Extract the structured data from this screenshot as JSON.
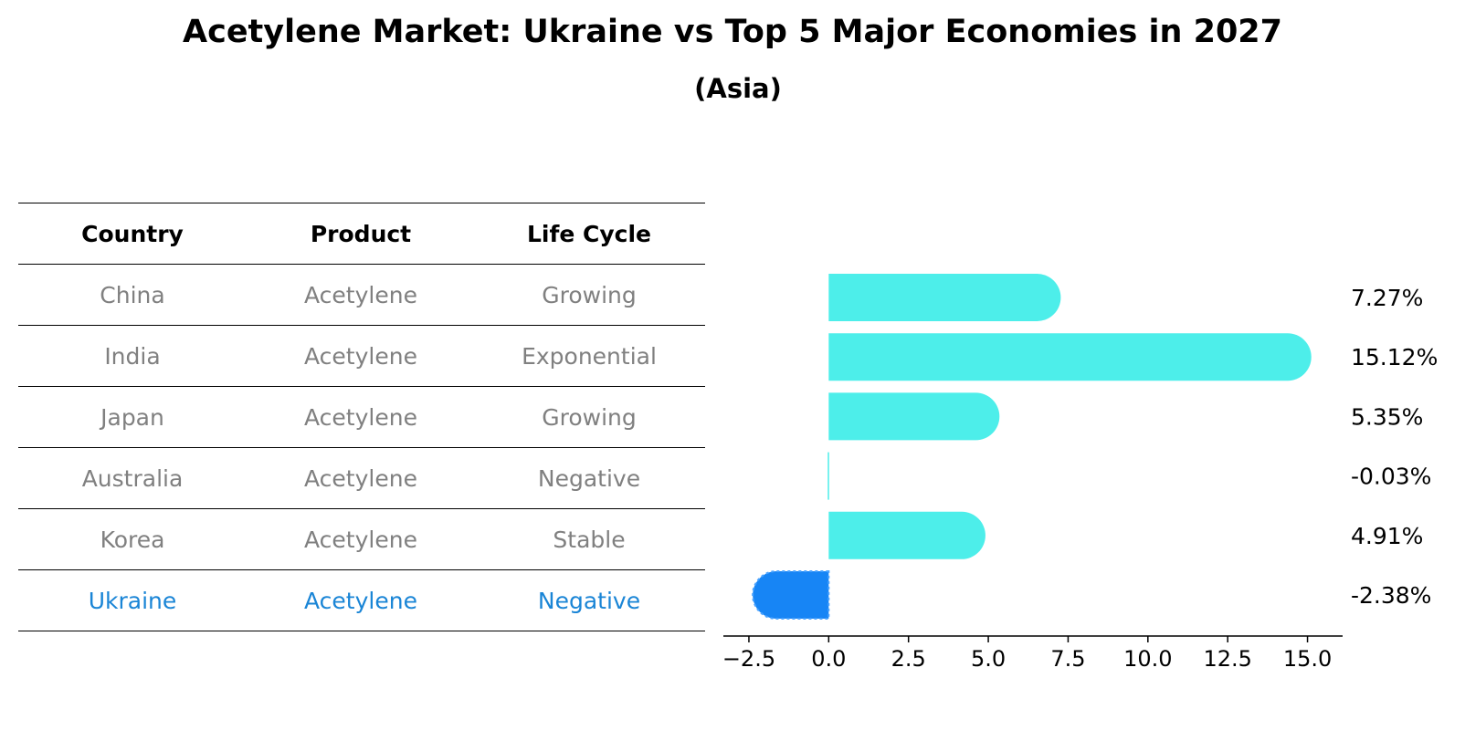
{
  "title": "Acetylene Market: Ukraine vs Top 5 Major Economies in 2027",
  "subtitle": "(Asia)",
  "table": {
    "headers": [
      "Country",
      "Product",
      "Life Cycle"
    ],
    "rows": [
      [
        "China",
        "Acetylene",
        "Growing"
      ],
      [
        "India",
        "Acetylene",
        "Exponential"
      ],
      [
        "Japan",
        "Acetylene",
        "Growing"
      ],
      [
        "Australia",
        "Acetylene",
        "Negative"
      ],
      [
        "Korea",
        "Acetylene",
        "Stable"
      ],
      [
        "Ukraine",
        "Acetylene",
        "Negative"
      ]
    ],
    "highlight_row": 5
  },
  "colors": {
    "bar": "#4deeea",
    "highlight_bar": "#1785f5",
    "highlight_text": "#1a85d6",
    "muted_text": "#808080"
  },
  "chart_data": {
    "type": "bar",
    "orientation": "horizontal",
    "categories": [
      "China",
      "India",
      "Japan",
      "Australia",
      "Korea",
      "Ukraine"
    ],
    "values": [
      7.27,
      15.12,
      5.35,
      -0.03,
      4.91,
      -2.38
    ],
    "value_labels": [
      "7.27%",
      "15.12%",
      "5.35%",
      "-0.03%",
      "4.91%",
      "-2.38%"
    ],
    "highlight_index": 5,
    "xlim": [
      -3.3,
      16.1
    ],
    "xticks": [
      -2.5,
      0.0,
      2.5,
      5.0,
      7.5,
      10.0,
      12.5,
      15.0
    ],
    "xtick_labels": [
      "−2.5",
      "0.0",
      "2.5",
      "5.0",
      "7.5",
      "10.0",
      "12.5",
      "15.0"
    ],
    "title": "Acetylene Market: Ukraine vs Top 5 Major Economies in 2027",
    "subtitle": "(Asia)",
    "xlabel": "",
    "ylabel": "",
    "grid": false,
    "legend": "none"
  }
}
